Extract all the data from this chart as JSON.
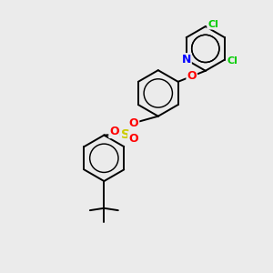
{
  "background_color": "#ebebeb",
  "bond_color": "#000000",
  "bond_width": 1.4,
  "figsize": [
    3.0,
    3.0
  ],
  "dpi": 100,
  "atom_colors": {
    "N": "#0000ff",
    "O": "#ff0000",
    "S": "#cccc00",
    "Cl": "#00cc00",
    "C": "#000000"
  },
  "xlim": [
    0,
    10
  ],
  "ylim": [
    0,
    10
  ]
}
